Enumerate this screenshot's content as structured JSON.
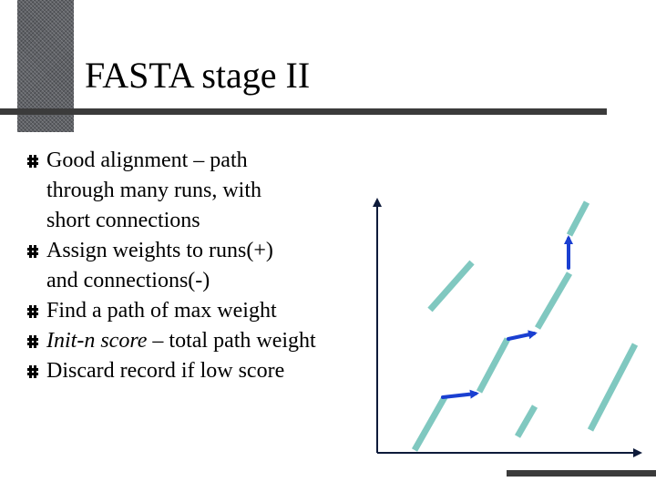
{
  "slide": {
    "title": "FASTA stage II",
    "bullets": [
      {
        "text": "Good alignment – path\nthrough many runs, with\nshort connections"
      },
      {
        "text": "Assign weights to runs(+)\nand connections(-)"
      },
      {
        "text": "Find a path of max weight"
      },
      {
        "emphasis": "Init-n score",
        "text": " – total path weight"
      },
      {
        "text": "Discard record if low score"
      }
    ]
  },
  "colors": {
    "accent_bar": "#5f6166",
    "rule": "#3b3b3b",
    "run_segment": "#80c8c0",
    "connection_arrow": "#1a3fd1",
    "axis": "#0d1a3a"
  },
  "diagram": {
    "icons": [
      "vertical-axis-arrow-icon",
      "horizontal-axis-arrow-icon"
    ]
  }
}
